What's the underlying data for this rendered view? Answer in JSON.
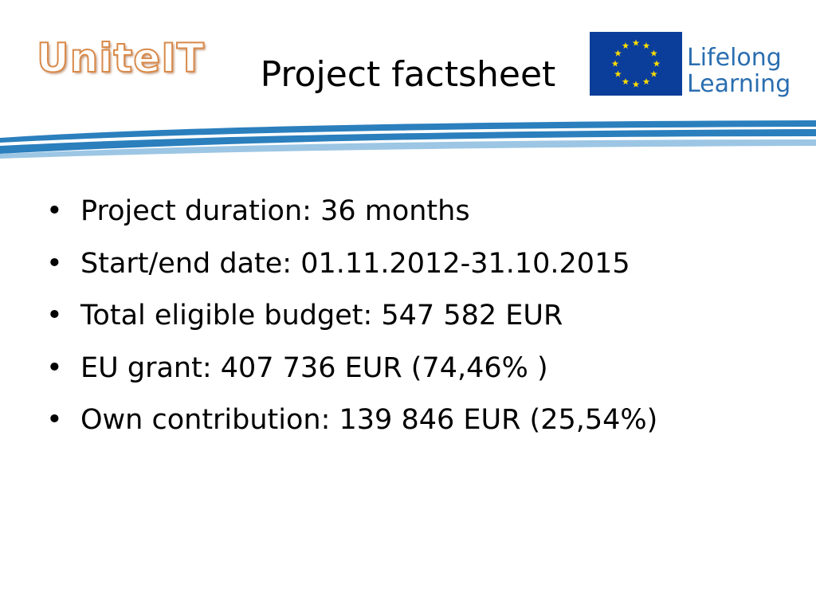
{
  "header": {
    "logo": "UniteIT",
    "title": "Project factsheet",
    "program_logo": {
      "line1": "Lifelong",
      "line2": "Learning"
    }
  },
  "bullets": [
    "Project duration: 36 months",
    "Start/end date: 01.11.2012-31.10.2015",
    "Total eligible budget: 547 582 EUR",
    "EU grant: 407 736 EUR (74,46% )",
    "Own contribution: 139 846 EUR (25,54%)"
  ]
}
